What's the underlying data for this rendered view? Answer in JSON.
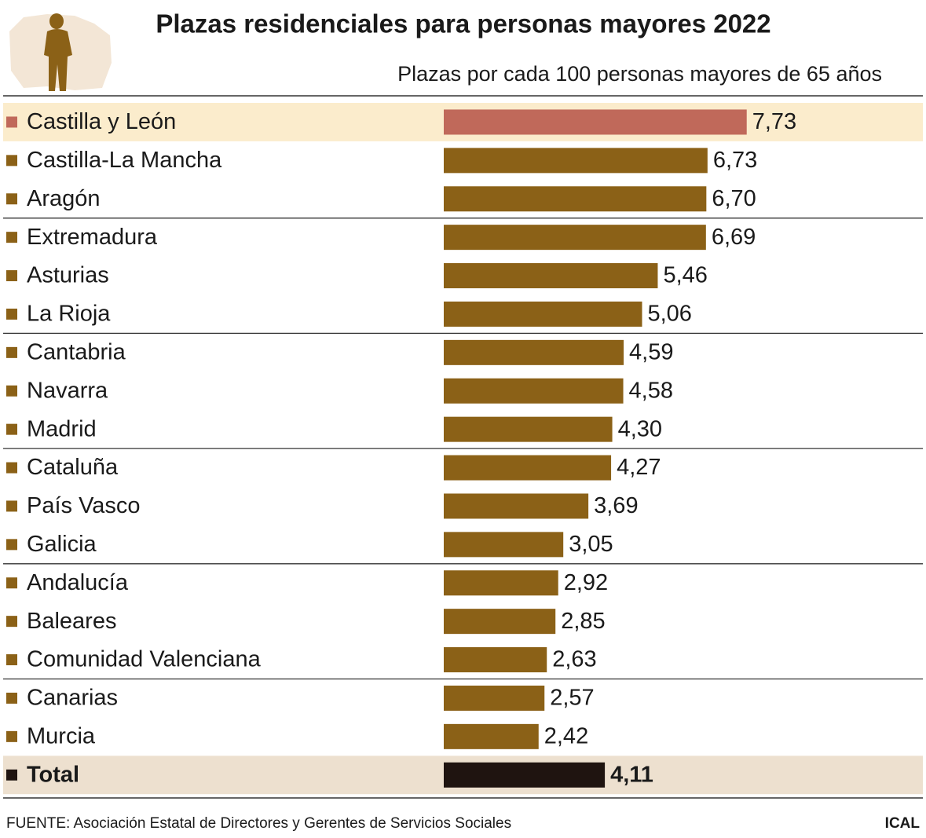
{
  "chart_data": {
    "type": "bar",
    "orientation": "horizontal",
    "title": "Plazas residenciales para personas mayores 2022",
    "subtitle": "Plazas por cada 100 personas mayores de 65 años",
    "categories": [
      "Castilla y León",
      "Castilla-La Mancha",
      "Aragón",
      "Extremadura",
      "Asturias",
      "La Rioja",
      "Cantabria",
      "Navarra",
      "Madrid",
      "Cataluña",
      "País Vasco",
      "Galicia",
      "Andalucía",
      "Baleares",
      "Comunidad Valenciana",
      "Canarias",
      "Murcia",
      "Total"
    ],
    "values": [
      7.73,
      6.73,
      6.7,
      6.69,
      5.46,
      5.06,
      4.59,
      4.58,
      4.3,
      4.27,
      3.69,
      3.05,
      2.92,
      2.85,
      2.63,
      2.57,
      2.42,
      4.11
    ],
    "value_labels": [
      "7,73",
      "6,73",
      "6,70",
      "6,69",
      "5,46",
      "5,06",
      "4,59",
      "4,58",
      "4,30",
      "4,27",
      "3,69",
      "3,05",
      "2,92",
      "2,85",
      "2,63",
      "2,57",
      "2,42",
      "4,11"
    ],
    "colors": [
      "#c0695a",
      "#8b6117",
      "#8b6117",
      "#8b6117",
      "#8b6117",
      "#8b6117",
      "#8b6117",
      "#8b6117",
      "#8b6117",
      "#8b6117",
      "#8b6117",
      "#8b6117",
      "#8b6117",
      "#8b6117",
      "#8b6117",
      "#8b6117",
      "#8b6117",
      "#1f1410"
    ],
    "row_colors": [
      "#fbeccc",
      null,
      null,
      null,
      null,
      null,
      null,
      null,
      null,
      null,
      null,
      null,
      null,
      null,
      null,
      null,
      null,
      "#ede0cf"
    ],
    "source": "FUENTE: Asociación Estatal de Directores y Gerentes de Servicios Sociales",
    "credit": "ICAL"
  }
}
